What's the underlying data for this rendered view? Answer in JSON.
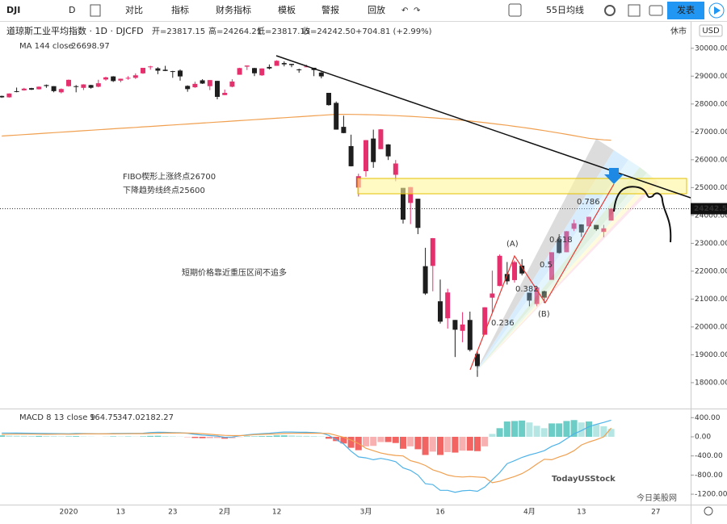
{
  "toolbar": {
    "symbol": "DJI",
    "interval": "D",
    "items": [
      "对比",
      "指标",
      "财务指标",
      "模板",
      "警报",
      "回放"
    ],
    "template": "55日均线",
    "publish": "发表"
  },
  "chart_data": {
    "type": "candlestick",
    "title": "道琼斯工业平均指数 · 1D · DJCFD",
    "ohlc_labels": [
      "开=23817.15",
      "高=24264.21",
      "低=23817.15",
      "收=24242.50",
      "+704.81 (+2.99%)"
    ],
    "market_status": "休市",
    "currency": "USD",
    "categories": [
      null,
      null,
      null,
      null,
      null,
      null,
      null,
      null,
      null,
      "2020",
      null,
      null,
      null,
      null,
      null,
      null,
      "13",
      null,
      null,
      null,
      null,
      null,
      null,
      "23",
      null,
      null,
      null,
      null,
      null,
      null,
      "2月",
      null,
      null,
      null,
      null,
      null,
      null,
      "12",
      null,
      null,
      null,
      null,
      null,
      null,
      null,
      null,
      null,
      null,
      null,
      "3月",
      null,
      null,
      null,
      null,
      null,
      null,
      null,
      null,
      null,
      "16",
      null,
      null,
      null,
      null,
      null,
      null,
      null,
      null,
      null,
      null,
      null,
      "4月",
      null,
      null,
      null,
      null,
      null,
      null,
      "13",
      null,
      null,
      null,
      null,
      null,
      null,
      null,
      null,
      null,
      "27"
    ],
    "candles": [
      [
        28290,
        28300,
        28220,
        28239
      ],
      [
        28240,
        28380,
        28230,
        28377
      ],
      [
        28460,
        28590,
        28420,
        28455
      ],
      [
        28490,
        28580,
        28480,
        28551
      ],
      [
        28570,
        28580,
        28500,
        28515
      ],
      [
        28530,
        28630,
        28520,
        28621
      ],
      [
        28680,
        28700,
        28580,
        28645
      ],
      [
        28640,
        28640,
        28420,
        28462
      ],
      [
        28420,
        28560,
        28380,
        28538
      ],
      [
        28640,
        28880,
        28620,
        28868
      ],
      [
        28640,
        28680,
        28420,
        28634
      ],
      [
        28580,
        28710,
        28500,
        28703
      ],
      [
        28680,
        28690,
        28550,
        28583
      ],
      [
        28620,
        28870,
        28600,
        28745
      ],
      [
        28880,
        28980,
        28840,
        28956
      ],
      [
        28990,
        29000,
        28790,
        28823
      ],
      [
        28840,
        28910,
        28780,
        28907
      ],
      [
        28930,
        29000,
        28870,
        28940
      ],
      [
        28940,
        29100,
        28900,
        29030
      ],
      [
        29100,
        29300,
        29080,
        29297
      ],
      [
        29320,
        29370,
        29230,
        29348
      ],
      [
        29280,
        29320,
        29070,
        29196
      ],
      [
        29230,
        29370,
        29180,
        29186
      ],
      [
        29180,
        29190,
        28940,
        29160
      ],
      [
        29200,
        29240,
        28840,
        28990
      ],
      [
        28650,
        28670,
        28440,
        28535
      ],
      [
        28600,
        28800,
        28580,
        28723
      ],
      [
        28850,
        28890,
        28720,
        28734
      ],
      [
        28640,
        28860,
        28500,
        28859
      ],
      [
        28830,
        28830,
        28170,
        28256
      ],
      [
        28320,
        28520,
        28320,
        28400
      ],
      [
        28620,
        28890,
        28600,
        28807
      ],
      [
        29050,
        29300,
        29050,
        29290
      ],
      [
        29340,
        29380,
        29220,
        29380
      ],
      [
        29290,
        29300,
        29000,
        29103
      ],
      [
        29030,
        29280,
        29010,
        29276
      ],
      [
        29330,
        29420,
        29240,
        29276
      ],
      [
        29370,
        29570,
        29370,
        29551
      ],
      [
        29470,
        29530,
        29350,
        29423
      ],
      [
        29440,
        29440,
        29320,
        29398
      ],
      [
        29240,
        29270,
        29120,
        29232
      ],
      [
        29330,
        29410,
        29330,
        29348
      ],
      [
        29300,
        29300,
        29000,
        29219
      ],
      [
        29130,
        29150,
        28920,
        28992
      ],
      [
        28400,
        28400,
        27940,
        27961
      ],
      [
        28040,
        28090,
        27080,
        27081
      ],
      [
        27180,
        27580,
        26950,
        26957
      ],
      [
        26490,
        26900,
        25760,
        25766
      ],
      [
        25000,
        25500,
        24680,
        25409
      ],
      [
        25590,
        26710,
        25390,
        26703
      ],
      [
        26760,
        27080,
        25710,
        25917
      ],
      [
        26380,
        27100,
        26380,
        27091
      ],
      [
        26550,
        26560,
        25990,
        26121
      ],
      [
        25460,
        25990,
        25230,
        25865
      ],
      [
        24990,
        24990,
        23710,
        23851
      ],
      [
        24450,
        25020,
        23690,
        25018
      ],
      [
        24600,
        24600,
        23330,
        23553
      ],
      [
        22180,
        22840,
        21150,
        21200
      ],
      [
        22190,
        23190,
        21280,
        23185
      ],
      [
        20920,
        21700,
        20120,
        20189
      ],
      [
        20310,
        21370,
        19940,
        21237
      ],
      [
        20250,
        20250,
        18920,
        19899
      ],
      [
        19860,
        20530,
        19450,
        20087
      ],
      [
        20250,
        20550,
        19120,
        19174
      ],
      [
        19030,
        19120,
        18210,
        18592
      ],
      [
        19720,
        20710,
        19720,
        20704
      ],
      [
        21050,
        22020,
        20500,
        21200
      ],
      [
        21470,
        22600,
        21460,
        22552
      ],
      [
        21900,
        22330,
        21520,
        21637
      ],
      [
        21680,
        22380,
        21590,
        22327
      ],
      [
        22200,
        22430,
        21850,
        21917
      ],
      [
        21230,
        21230,
        20740,
        20943
      ],
      [
        20820,
        21440,
        20740,
        21413
      ],
      [
        21280,
        21300,
        20860,
        21052
      ],
      [
        21690,
        22680,
        21690,
        22680
      ],
      [
        23140,
        23330,
        22630,
        22654
      ],
      [
        22680,
        23440,
        22680,
        23434
      ],
      [
        23520,
        23850,
        23440,
        23719
      ],
      [
        23680,
        23680,
        23230,
        23390
      ],
      [
        23610,
        23960,
        23610,
        23949
      ],
      [
        23660,
        23660,
        23450,
        23504
      ],
      [
        23410,
        23660,
        23220,
        23538
      ],
      [
        23817.15,
        24264.21,
        23817.15,
        24242.5
      ],
      null,
      null,
      null,
      null,
      null,
      null
    ],
    "colors": {
      "up": "#e5306e",
      "down": "#1e1e1e"
    },
    "ylim": [
      17100,
      30950
    ],
    "yticks": [
      {
        "value": 18000,
        "label": "18000.00"
      },
      {
        "value": 19000,
        "label": "19000.00"
      },
      {
        "value": 20000,
        "label": "20000.00"
      },
      {
        "value": 21000,
        "label": "21000.00"
      },
      {
        "value": 22000,
        "label": "22000.00"
      },
      {
        "value": 23000,
        "label": "23000.00"
      },
      {
        "value": 24000,
        "label": "24000.00"
      },
      {
        "value": 25000,
        "label": "25000.00"
      },
      {
        "value": 26000,
        "label": "26000.00"
      },
      {
        "value": 27000,
        "label": "27000.00"
      },
      {
        "value": 28000,
        "label": "28000.00"
      },
      {
        "value": 29000,
        "label": "29000.00"
      },
      {
        "value": 30000,
        "label": "30000.00"
      }
    ],
    "grid": false,
    "last_price": {
      "value": 24242.5,
      "label": "24242.50"
    },
    "ma": {
      "name": "MA 144 close",
      "color": "#f0a050",
      "values": [
        26850,
        26867,
        26885,
        26902,
        26919,
        26937,
        26954,
        26971,
        26988,
        27006,
        27023,
        27040,
        27058,
        27075,
        27092,
        27110,
        27127,
        27144,
        27161,
        27179,
        27196,
        27213,
        27231,
        27248,
        27265,
        27283,
        27300,
        27317,
        27334,
        27352,
        27369,
        27386,
        27404,
        27421,
        27438,
        27456,
        27473,
        27490,
        27507,
        27525,
        27542,
        27559,
        27577,
        27594,
        27611,
        27629,
        27630,
        27628,
        27624,
        27619,
        27612,
        27604,
        27594,
        27583,
        27570,
        27556,
        27540,
        27523,
        27504,
        27484,
        27462,
        27439,
        27414,
        27388,
        27360,
        27331,
        27300,
        27268,
        27234,
        27199,
        27162,
        27124,
        27084,
        27043,
        27000,
        26956,
        26911,
        26864,
        26816,
        26770,
        26740,
        26715,
        26698.97,
        null,
        null,
        null,
        null,
        null,
        null
      ]
    },
    "annotations": [
      "FIBO楔形上涨终点26700",
      "下降趋势线终点25600",
      "短期价格靠近重压区间不追多"
    ],
    "fib_labels": [
      "0.236",
      "0.382",
      "0.5",
      "0.618",
      "0.786"
    ],
    "wave_labels": [
      "(A)",
      "(B)"
    ],
    "macd": {
      "name": "MACD 8 13 close 9",
      "histogram": {
        "up_color": "#5cc8c0",
        "down_color": "#ef5350",
        "values": [
          30,
          25,
          22,
          20,
          18,
          18,
          17,
          14,
          10,
          10,
          15,
          8,
          5,
          0,
          3,
          10,
          8,
          8,
          6,
          10,
          20,
          22,
          15,
          10,
          5,
          -5,
          -25,
          -30,
          -28,
          -25,
          -40,
          -30,
          -5,
          10,
          10,
          15,
          18,
          30,
          30,
          28,
          22,
          20,
          15,
          8,
          -40,
          -90,
          -140,
          -230,
          -280,
          -200,
          -190,
          -110,
          -110,
          -130,
          -250,
          -200,
          -260,
          -380,
          -310,
          -380,
          -320,
          -330,
          -290,
          -290,
          -300,
          -200,
          60,
          180,
          320,
          330,
          340,
          300,
          230,
          180,
          280,
          280,
          330,
          350,
          300,
          320,
          260,
          220,
          164.75,
          null,
          null,
          null,
          null,
          null,
          null
        ]
      },
      "macd_line": {
        "color": "#4fb3e8",
        "values": [
          80,
          80,
          78,
          76,
          74,
          72,
          70,
          68,
          66,
          64,
          70,
          68,
          66,
          62,
          64,
          70,
          70,
          72,
          72,
          75,
          90,
          95,
          92,
          88,
          84,
          75,
          50,
          35,
          25,
          15,
          -10,
          -5,
          20,
          40,
          55,
          65,
          75,
          90,
          100,
          100,
          95,
          95,
          90,
          80,
          30,
          -60,
          -150,
          -300,
          -420,
          -440,
          -480,
          -450,
          -480,
          -520,
          -650,
          -700,
          -800,
          -980,
          -1000,
          -1120,
          -1120,
          -1160,
          -1130,
          -1120,
          -1140,
          -1050,
          -900,
          -750,
          -560,
          -500,
          -430,
          -380,
          -340,
          -290,
          -200,
          -140,
          -40,
          60,
          130,
          210,
          260,
          300,
          347.02,
          null,
          null,
          null,
          null,
          null,
          null
        ]
      },
      "signal": {
        "color": "#f0a050",
        "values": [
          50,
          55,
          56,
          56,
          56,
          54,
          53,
          54,
          56,
          54,
          55,
          60,
          61,
          62,
          61,
          60,
          62,
          64,
          66,
          65,
          70,
          73,
          77,
          78,
          79,
          80,
          75,
          65,
          53,
          40,
          30,
          25,
          25,
          30,
          45,
          50,
          57,
          60,
          70,
          72,
          73,
          75,
          75,
          72,
          70,
          30,
          -10,
          -70,
          -140,
          -240,
          -290,
          -340,
          -370,
          -390,
          -400,
          -500,
          -540,
          -600,
          -690,
          -740,
          -800,
          -830,
          -840,
          -830,
          -840,
          -850,
          -960,
          -930,
          -880,
          -830,
          -770,
          -680,
          -570,
          -470,
          -480,
          -420,
          -370,
          -290,
          -170,
          -110,
          -60,
          0,
          182.27,
          null,
          null,
          null,
          null,
          null,
          null
        ]
      },
      "ylim": [
        -1418,
        557
      ],
      "yticks": [
        {
          "value": 400,
          "label": "400.00"
        },
        {
          "value": 0,
          "label": "0.00"
        },
        {
          "value": -400,
          "label": "-400.00"
        },
        {
          "value": -800,
          "label": "-800.00"
        },
        {
          "value": -1200,
          "label": "-1200.00"
        }
      ]
    },
    "watermark": [
      "TodayUSStock",
      "今日美股网"
    ]
  }
}
